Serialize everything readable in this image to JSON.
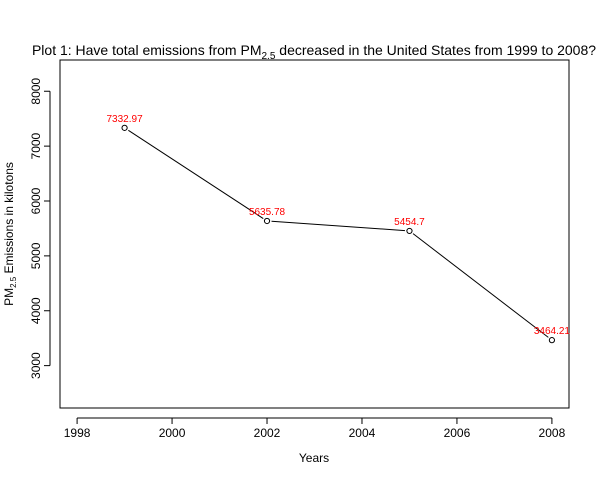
{
  "chart_data": {
    "type": "line",
    "title": {
      "prefix": "Plot 1: Have total emissions from PM",
      "subscript": "2.5",
      "suffix": " decreased in the United States from 1999 to 2008?"
    },
    "xlabel": "Years",
    "ylabel": {
      "prefix": "PM",
      "subscript": "2.5",
      "suffix": " Emissions in kilotons"
    },
    "x": [
      1999,
      2002,
      2005,
      2008
    ],
    "y": [
      7332.97,
      5635.78,
      5454.7,
      3464.21
    ],
    "data_labels": [
      "7332.97",
      "5635.78",
      "5454.7",
      "3464.21"
    ],
    "xlim": [
      1997.64,
      2008.36
    ],
    "ylim": [
      2227.8,
      8569.4
    ],
    "x_ticks": [
      1998,
      2000,
      2002,
      2004,
      2006,
      2008
    ],
    "y_ticks": [
      3000,
      4000,
      5000,
      6000,
      7000,
      8000
    ],
    "grid": false,
    "line_color": "#000000",
    "label_color": "#ff0000",
    "marker": "open-circle"
  }
}
